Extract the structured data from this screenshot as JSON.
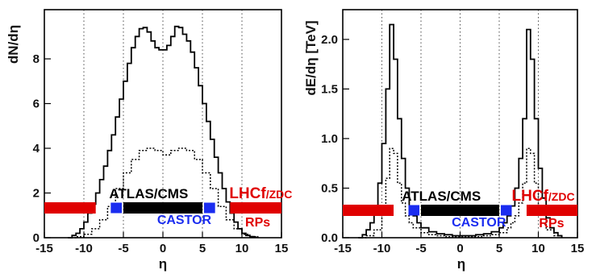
{
  "chart_data": [
    {
      "type": "step",
      "ylabel": "dN/dη",
      "xlabel": "η",
      "xlim": [
        -15,
        15
      ],
      "ylim": [
        0,
        10.2
      ],
      "xticks": [
        -15,
        -10,
        -5,
        0,
        5,
        10,
        15
      ],
      "xtick_labels": [
        "-15",
        "-10",
        "-5",
        "0",
        "5",
        "10",
        "15"
      ],
      "yticks": [
        0,
        2,
        4,
        6,
        8
      ],
      "ytick_labels": [
        "0",
        "2",
        "4",
        "6",
        "8"
      ],
      "grid": "vertical dotted",
      "series": [
        {
          "style": "solid",
          "x": [
            -12,
            -11.5,
            -11,
            -10.5,
            -10,
            -9.5,
            -9,
            -8.5,
            -8,
            -7.5,
            -7,
            -6.5,
            -6,
            -5.5,
            -5,
            -4.5,
            -4,
            -3.5,
            -3,
            -2.5,
            -2,
            -1.5,
            -1,
            -0.5,
            0,
            0.5,
            1,
            1.5,
            2,
            2.5,
            3,
            3.5,
            4,
            4.5,
            5,
            5.5,
            6,
            6.5,
            7,
            7.5,
            8,
            8.5,
            9,
            9.5,
            10,
            10.5,
            11,
            11.5,
            12
          ],
          "y": [
            0,
            0.1,
            0.2,
            0.4,
            0.7,
            1.1,
            1.5,
            2.0,
            2.6,
            3.2,
            3.9,
            4.6,
            5.4,
            6.2,
            7.0,
            7.8,
            8.5,
            9.0,
            9.35,
            9.4,
            9.2,
            8.8,
            8.5,
            8.4,
            8.4,
            8.6,
            9.0,
            9.45,
            9.4,
            9.1,
            8.8,
            8.3,
            7.6,
            6.8,
            6.0,
            5.2,
            4.4,
            3.6,
            2.9,
            2.2,
            1.6,
            1.1,
            0.7,
            0.4,
            0.2,
            0.1,
            0.05,
            0.02,
            0
          ]
        },
        {
          "style": "dotted",
          "x": [
            -12,
            -11,
            -10,
            -9,
            -8,
            -7,
            -6,
            -5,
            -4,
            -3,
            -2,
            -1,
            0,
            1,
            2,
            3,
            4,
            5,
            6,
            7,
            8,
            9,
            10,
            11,
            12
          ],
          "y": [
            0,
            0.05,
            0.15,
            0.4,
            0.8,
            1.4,
            2.2,
            2.9,
            3.5,
            3.9,
            4.0,
            3.9,
            3.7,
            3.9,
            4.0,
            3.9,
            3.5,
            2.9,
            2.2,
            1.4,
            0.8,
            0.4,
            0.15,
            0.05,
            0
          ]
        }
      ],
      "detectors": [
        {
          "name": "ATLAS/CMS",
          "color": "#000000",
          "eta": [
            -5,
            5
          ]
        },
        {
          "name": "CASTOR",
          "color": "#1a2cf0",
          "eta": [
            -6.6,
            -5.2
          ]
        },
        {
          "name": "CASTOR",
          "color": "#1a2cf0",
          "eta": [
            5.2,
            6.6
          ]
        },
        {
          "name": "LHCf/ZDC",
          "color": "#e00000",
          "eta": [
            -15,
            -8.5
          ]
        },
        {
          "name": "RPs",
          "color": "#e00000",
          "eta": [
            8.5,
            15
          ]
        }
      ],
      "labels": {
        "atlas": "ATLAS/CMS",
        "castor": "CASTOR",
        "lhcf": "LHCf/ZDC",
        "rps": "RPs"
      }
    },
    {
      "type": "step",
      "ylabel": "dE/dη [TeV]",
      "xlabel": "η",
      "xlim": [
        -15,
        15
      ],
      "ylim": [
        0,
        2.3
      ],
      "xticks": [
        -15,
        -10,
        -5,
        0,
        5,
        10,
        15
      ],
      "xtick_labels": [
        "-15",
        "-10",
        "-5",
        "0",
        "5",
        "10",
        "15"
      ],
      "yticks": [
        0,
        0.5,
        1.0,
        1.5,
        2.0
      ],
      "ytick_labels": [
        "0.0",
        "0.5",
        "1.0",
        "1.5",
        "2.0"
      ],
      "grid": "vertical dotted",
      "series": [
        {
          "style": "solid",
          "x": [
            -13,
            -12.5,
            -12,
            -11.5,
            -11,
            -10.5,
            -10,
            -9.5,
            -9,
            -8.5,
            -8,
            -7.5,
            -7,
            -6.5,
            -6,
            -5.5,
            -5,
            -4,
            -3,
            -2,
            -1,
            0,
            1,
            2,
            3,
            4,
            5,
            5.5,
            6,
            6.5,
            7,
            7.5,
            8,
            8.5,
            9,
            9.5,
            10,
            10.5,
            11,
            11.5,
            12,
            12.5,
            13
          ],
          "y": [
            0,
            0.03,
            0.08,
            0.15,
            0.3,
            0.55,
            0.95,
            1.5,
            2.15,
            1.8,
            1.2,
            0.8,
            0.5,
            0.32,
            0.22,
            0.15,
            0.1,
            0.06,
            0.04,
            0.03,
            0.02,
            0.02,
            0.02,
            0.03,
            0.04,
            0.06,
            0.1,
            0.15,
            0.22,
            0.32,
            0.5,
            0.8,
            1.2,
            2.1,
            1.8,
            1.2,
            0.7,
            0.4,
            0.2,
            0.1,
            0.05,
            0.02,
            0
          ]
        },
        {
          "style": "dotted",
          "x": [
            -13,
            -12,
            -11,
            -10,
            -9.5,
            -9,
            -8.5,
            -8,
            -7.5,
            -7,
            -6.5,
            -6,
            -5,
            -4,
            -3,
            -2,
            -1,
            0,
            1,
            2,
            3,
            4,
            5,
            6,
            6.5,
            7,
            7.5,
            8,
            8.5,
            9,
            9.5,
            10,
            11,
            12,
            13
          ],
          "y": [
            0,
            0.02,
            0.08,
            0.3,
            0.6,
            0.9,
            0.85,
            0.55,
            0.35,
            0.22,
            0.15,
            0.1,
            0.05,
            0.03,
            0.02,
            0.01,
            0.01,
            0.01,
            0.01,
            0.01,
            0.02,
            0.03,
            0.05,
            0.1,
            0.15,
            0.22,
            0.35,
            0.55,
            0.9,
            0.85,
            0.55,
            0.3,
            0.08,
            0.02,
            0
          ]
        }
      ],
      "detectors": [
        {
          "name": "ATLAS/CMS",
          "color": "#000000",
          "eta": [
            -5,
            5
          ]
        },
        {
          "name": "CASTOR",
          "color": "#1a2cf0",
          "eta": [
            -6.6,
            -5.2
          ]
        },
        {
          "name": "CASTOR",
          "color": "#1a2cf0",
          "eta": [
            5.2,
            6.6
          ]
        },
        {
          "name": "LHCf/ZDC",
          "color": "#e00000",
          "eta": [
            -15,
            -8.5
          ]
        },
        {
          "name": "RPs",
          "color": "#e00000",
          "eta": [
            8.5,
            15
          ]
        }
      ],
      "labels": {
        "atlas": "ATLAS/CMS",
        "castor": "CASTOR",
        "lhcf": "LHCf/ZDC",
        "rps": "RPs"
      }
    }
  ]
}
